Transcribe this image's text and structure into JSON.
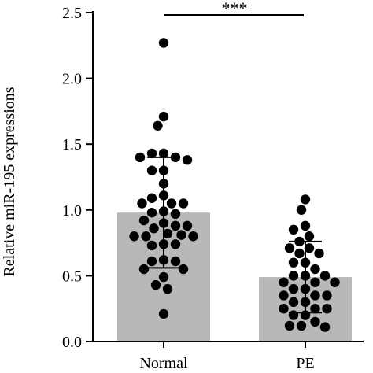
{
  "chart_data": {
    "type": "bar",
    "title": "",
    "xlabel": "",
    "ylabel": "Relative miR-195 expressions",
    "ylim": [
      0,
      2.5
    ],
    "yticks": [
      "0.0",
      "0.5",
      "1.0",
      "1.5",
      "2.0",
      "2.5"
    ],
    "categories": [
      "Normal",
      "PE"
    ],
    "values": [
      0.98,
      0.49
    ],
    "error_sd": [
      0.42,
      0.27
    ],
    "significance": {
      "label": "***",
      "between": [
        "Normal",
        "PE"
      ]
    },
    "bar_color": "#b8b8b8",
    "point_color": "#000000",
    "points": [
      {
        "category": "Normal",
        "values": [
          2.27,
          1.71,
          1.64,
          1.43,
          1.43,
          1.4,
          1.38,
          1.4,
          1.3,
          1.3,
          1.2,
          1.11,
          1.09,
          1.05,
          1.05,
          1.05,
          0.99,
          0.98,
          0.97,
          0.92,
          0.9,
          0.88,
          0.88,
          0.86,
          0.82,
          0.81,
          0.8,
          0.8,
          0.8,
          0.74,
          0.74,
          0.73,
          0.62,
          0.61,
          0.61,
          0.55,
          0.55,
          0.49,
          0.43,
          0.4,
          0.21
        ]
      },
      {
        "category": "PE",
        "values": [
          1.08,
          1.0,
          0.88,
          0.85,
          0.8,
          0.76,
          0.71,
          0.71,
          0.67,
          0.67,
          0.6,
          0.6,
          0.55,
          0.5,
          0.5,
          0.5,
          0.45,
          0.45,
          0.45,
          0.4,
          0.4,
          0.35,
          0.35,
          0.35,
          0.3,
          0.3,
          0.25,
          0.25,
          0.25,
          0.2,
          0.2,
          0.15,
          0.12,
          0.12,
          0.11
        ]
      }
    ]
  }
}
